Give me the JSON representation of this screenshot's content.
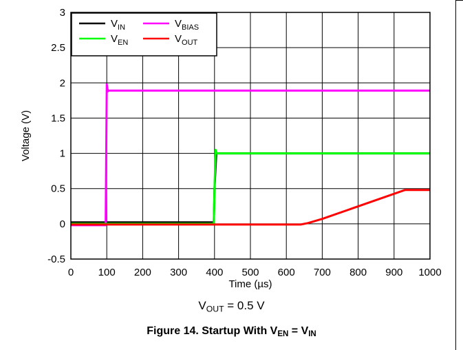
{
  "chart_data": {
    "type": "line",
    "title": "",
    "xlabel": "Time (µs)",
    "ylabel": "Voltage (V)",
    "xlim": [
      0,
      1000
    ],
    "ylim": [
      -0.5,
      3
    ],
    "grid": true,
    "legend_position": "top-left",
    "xticks": [
      "0",
      "100",
      "200",
      "300",
      "400",
      "500",
      "600",
      "700",
      "800",
      "900",
      "1000"
    ],
    "yticks": [
      "-0.5",
      "0",
      "0.5",
      "1",
      "1.5",
      "2",
      "2.5",
      "3"
    ],
    "series": [
      {
        "name": "VIN",
        "label_main": "V",
        "label_sub": "IN",
        "color": "#000000",
        "x": [
          0,
          100,
          200,
          300,
          398,
          400,
          405,
          1000
        ],
        "y": [
          0.02,
          0.02,
          0.02,
          0.02,
          0.02,
          0.5,
          1.0,
          1.0
        ]
      },
      {
        "name": "VBIAS",
        "label_main": "V",
        "label_sub": "BIAS",
        "color": "#ff00ff",
        "x": [
          0,
          97,
          100,
          103,
          106,
          1000
        ],
        "y": [
          -0.02,
          -0.02,
          1.98,
          1.88,
          1.89,
          1.89
        ]
      },
      {
        "name": "VEN",
        "label_main": "V",
        "label_sub": "EN",
        "color": "#00ff00",
        "x": [
          0,
          398,
          400,
          403,
          406,
          1000
        ],
        "y": [
          0.0,
          0.0,
          0.5,
          1.05,
          1.0,
          1.0
        ]
      },
      {
        "name": "VOUT",
        "label_main": "V",
        "label_sub": "OUT",
        "color": "#ff0000",
        "x": [
          0,
          640,
          660,
          700,
          930,
          1000
        ],
        "y": [
          -0.01,
          -0.01,
          0.01,
          0.07,
          0.48,
          0.48
        ]
      }
    ]
  },
  "condition": {
    "main": "V",
    "sub": "OUT",
    "rest": " = 0.5 V"
  },
  "figure_caption": {
    "prefix": "Figure 14. Startup With V",
    "sub1": "EN",
    "mid": " = V",
    "sub2": "IN"
  }
}
